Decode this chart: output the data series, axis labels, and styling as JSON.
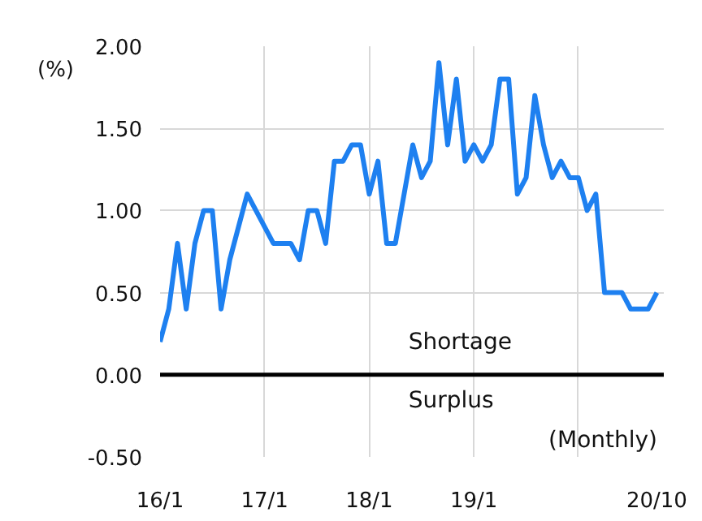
{
  "chart_data": {
    "type": "line",
    "ylabel": "(%)",
    "categories": [
      "16/1",
      null,
      null,
      null,
      null,
      null,
      null,
      null,
      null,
      null,
      null,
      null,
      "17/1",
      null,
      null,
      null,
      null,
      null,
      null,
      null,
      null,
      null,
      null,
      null,
      "18/1",
      null,
      null,
      null,
      null,
      null,
      null,
      null,
      null,
      null,
      null,
      null,
      "19/1",
      null,
      null,
      null,
      null,
      null,
      null,
      null,
      null,
      null,
      null,
      null,
      null,
      null,
      null,
      null,
      null,
      null,
      null,
      null,
      null,
      "20/10"
    ],
    "series": [
      {
        "color": "#1e80f0",
        "values": [
          0.2,
          0.4,
          0.8,
          0.4,
          0.8,
          1.0,
          1.0,
          0.4,
          0.7,
          0.9,
          1.1,
          1.0,
          0.9,
          0.8,
          0.8,
          0.8,
          0.7,
          1.0,
          1.0,
          0.8,
          1.3,
          1.3,
          1.4,
          1.4,
          1.1,
          1.3,
          0.8,
          0.8,
          1.1,
          1.4,
          1.2,
          1.3,
          1.9,
          1.4,
          1.8,
          1.3,
          1.4,
          1.3,
          1.4,
          1.8,
          1.8,
          1.1,
          1.2,
          1.7,
          1.4,
          1.2,
          1.3,
          1.2,
          1.2,
          1.0,
          1.1,
          0.5,
          0.5,
          0.5,
          0.4,
          0.4,
          0.4,
          0.5
        ]
      }
    ],
    "ylim": [
      -0.5,
      2.0
    ],
    "yticks": [
      {
        "value": -0.5,
        "label": "-0.50"
      },
      {
        "value": 0,
        "label": "0.00"
      },
      {
        "value": 0.5,
        "label": "0.50"
      },
      {
        "value": 1.0,
        "label": "1.00"
      },
      {
        "value": 1.5,
        "label": "1.50"
      },
      {
        "value": 2.0,
        "label": "2.00"
      }
    ],
    "grid": true,
    "marker": "none",
    "line_style": "solid",
    "ref_lines": [
      {
        "axis": "y",
        "value": 0,
        "color": "#000000"
      }
    ],
    "annotations": [
      "Shortage",
      "Surplus",
      "(Monthly)"
    ]
  }
}
